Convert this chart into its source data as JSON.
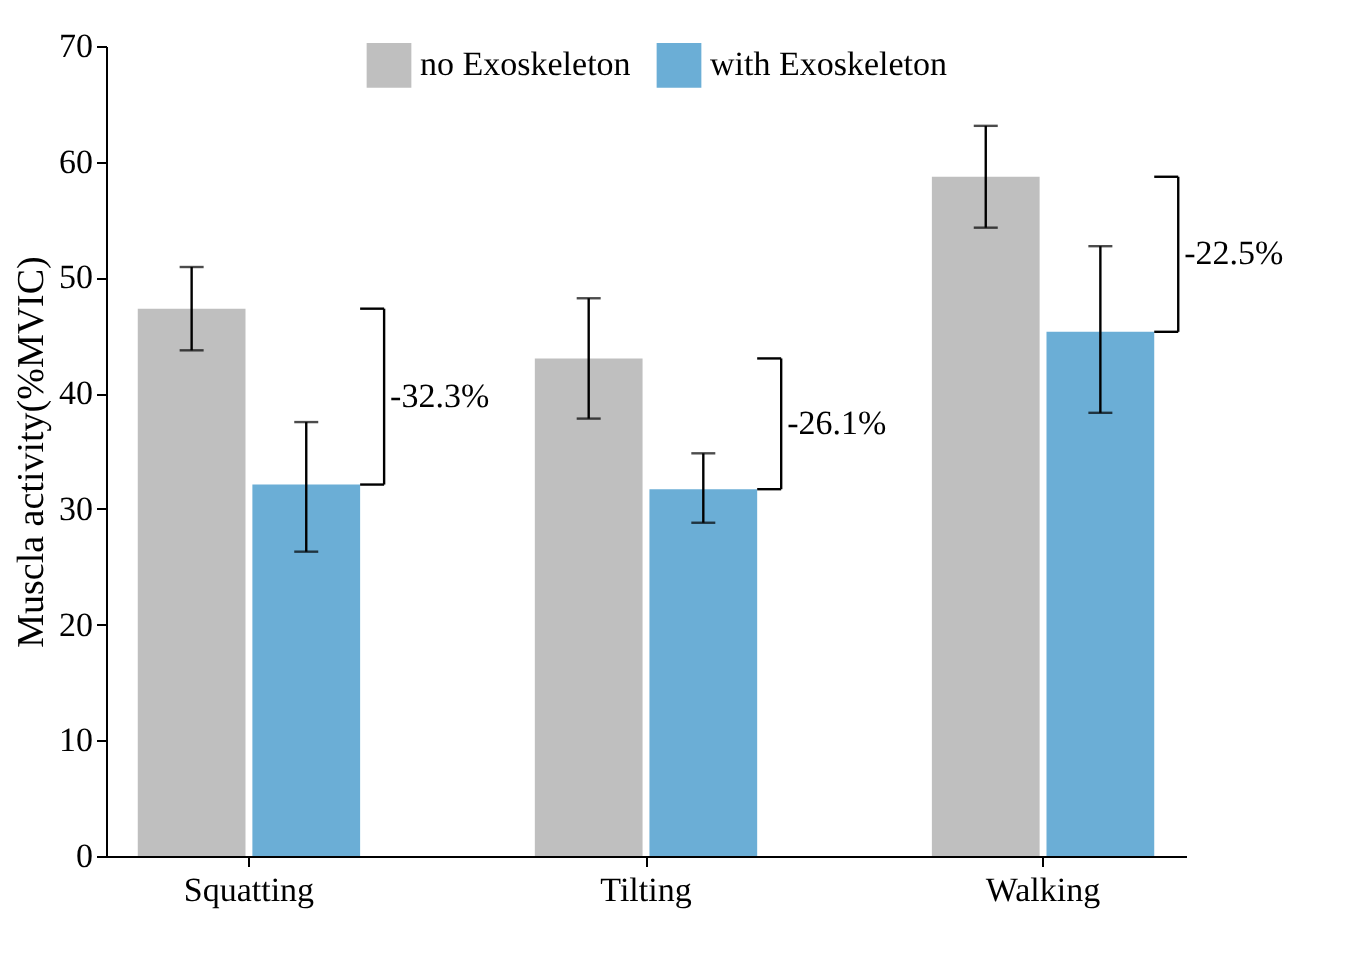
{
  "chart_data": {
    "type": "bar",
    "ylabel": "Muscla activity(%MVIC)",
    "categories": [
      "Squatting",
      "Tilting",
      "Walking"
    ],
    "series": [
      {
        "name": "no Exoskeleton",
        "color": "#bfbfbf",
        "values": [
          47.3,
          43.0,
          58.7
        ],
        "errors": [
          [
            43.7,
            50.9
          ],
          [
            37.8,
            48.2
          ],
          [
            54.3,
            63.1
          ]
        ]
      },
      {
        "name": "with Exoskeleton",
        "color": "#6baed6",
        "values": [
          32.1,
          31.7,
          45.3
        ],
        "errors": [
          [
            26.3,
            37.5
          ],
          [
            28.8,
            34.8
          ],
          [
            38.3,
            52.7
          ]
        ]
      }
    ],
    "ylim": [
      0,
      70
    ],
    "yticks": [
      0,
      10,
      20,
      30,
      40,
      50,
      60,
      70
    ],
    "grid": false,
    "legend": "top",
    "annotations": [
      "-32.3%",
      "-26.1%",
      "-22.5%"
    ]
  }
}
